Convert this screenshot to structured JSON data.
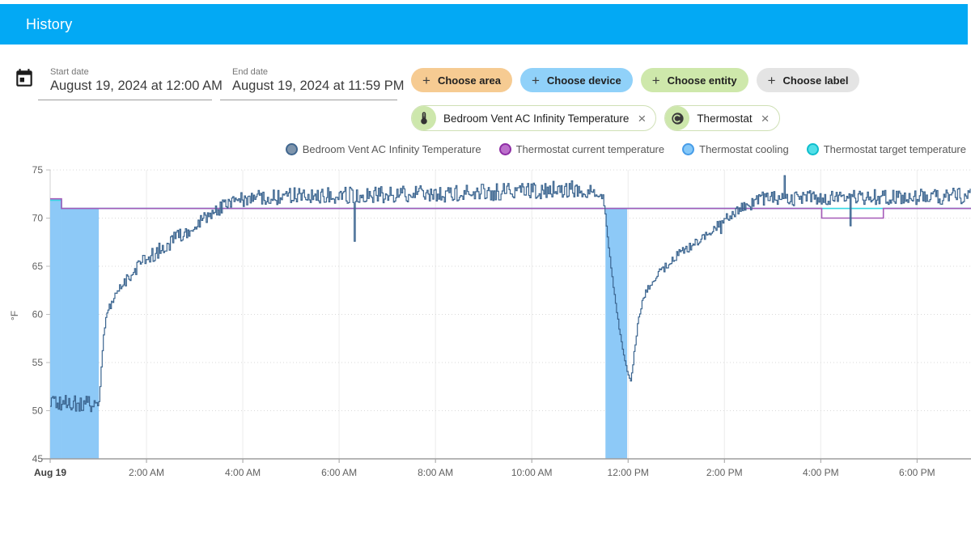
{
  "header": {
    "title": "History"
  },
  "dates": {
    "start_label": "Start date",
    "start_value": "August 19, 2024 at 12:00 AM",
    "end_label": "End date",
    "end_value": "August 19, 2024 at 11:59 PM"
  },
  "filter_chips": [
    {
      "label": "Choose area",
      "bg": "#f6cb92"
    },
    {
      "label": "Choose device",
      "bg": "#90d1f9"
    },
    {
      "label": "Choose entity",
      "bg": "#cee8ab"
    },
    {
      "label": "Choose label",
      "bg": "#e4e4e4"
    }
  ],
  "entity_chips": [
    {
      "label": "Bedroom Vent AC Infinity Temperature",
      "icon": "thermometer-icon",
      "close": "×"
    },
    {
      "label": "Thermostat",
      "icon": "thermostat-icon",
      "close": "×"
    }
  ],
  "chart_data": {
    "type": "line",
    "title": "",
    "xlabel": "",
    "ylabel": "°F",
    "ylim": [
      45,
      75
    ],
    "xlim": [
      0,
      19.12
    ],
    "grid": true,
    "legend_position": "top-right",
    "y_ticks": [
      75,
      70,
      65,
      60,
      55,
      50,
      45
    ],
    "x_ticks": [
      {
        "t": 0,
        "label": "Aug 19",
        "bold": true
      },
      {
        "t": 2,
        "label": "2:00 AM"
      },
      {
        "t": 4,
        "label": "4:00 AM"
      },
      {
        "t": 6,
        "label": "6:00 AM"
      },
      {
        "t": 8,
        "label": "8:00 AM"
      },
      {
        "t": 10,
        "label": "10:00 AM"
      },
      {
        "t": 12,
        "label": "12:00 PM"
      },
      {
        "t": 14,
        "label": "2:00 PM"
      },
      {
        "t": 16,
        "label": "4:00 PM"
      },
      {
        "t": 18,
        "label": "6:00 PM"
      }
    ],
    "legend": [
      {
        "label": "Bedroom Vent AC Infinity Temperature",
        "fill": "#7f95ac",
        "border": "#41678f"
      },
      {
        "label": "Thermostat current temperature",
        "fill": "#bb6fcb",
        "border": "#8e2da5"
      },
      {
        "label": "Thermostat cooling",
        "fill": "#85c8f8",
        "border": "#479ce8"
      },
      {
        "label": "Thermostat target temperature",
        "fill": "#52dfe8",
        "border": "#0fbecd"
      }
    ],
    "cooling_color": "#8dc9f7",
    "cooling_intervals": [
      {
        "from": 0,
        "to": 0.235,
        "top": 72
      },
      {
        "from": 0.235,
        "to": 1.01,
        "top": 71
      },
      {
        "from": 11.53,
        "to": 11.98,
        "top": 71
      }
    ],
    "series": [
      {
        "name": "Thermostat target temperature",
        "type": "step",
        "color": "#35d8e4",
        "width": 1.6,
        "points": [
          [
            0,
            71.85
          ],
          [
            0.235,
            71.85
          ],
          [
            0.235,
            71
          ],
          [
            19.12,
            71
          ]
        ]
      },
      {
        "name": "Thermostat current temperature",
        "type": "step",
        "color": "#a55ab8",
        "width": 1.6,
        "points": [
          [
            0,
            72
          ],
          [
            0.235,
            72
          ],
          [
            0.235,
            71
          ],
          [
            16.02,
            71
          ],
          [
            16.02,
            70
          ],
          [
            17.3,
            70
          ],
          [
            17.3,
            71
          ],
          [
            19.12,
            71
          ]
        ]
      },
      {
        "name": "Bedroom Vent AC Infinity Temperature",
        "type": "noisy-step",
        "color": "#3a648f",
        "width": 1.2,
        "seed": 20240819,
        "step": 0.024,
        "anchors": [
          [
            0,
            50.8,
            0.85
          ],
          [
            1.0,
            50.7,
            0.85
          ],
          [
            1.02,
            51.8,
            0.2
          ],
          [
            1.05,
            54,
            0.2
          ],
          [
            1.08,
            56.4,
            0.2
          ],
          [
            1.12,
            58.6,
            0.2
          ],
          [
            1.18,
            60.2,
            0.3
          ],
          [
            1.3,
            61.6,
            0.5
          ],
          [
            1.5,
            63,
            0.6
          ],
          [
            1.75,
            64.6,
            0.7
          ],
          [
            2,
            65.8,
            0.8
          ],
          [
            2.4,
            67.2,
            0.8
          ],
          [
            2.8,
            68.6,
            0.8
          ],
          [
            3.2,
            70,
            0.7
          ],
          [
            3.6,
            71.3,
            0.7
          ],
          [
            4,
            72,
            0.8
          ],
          [
            5,
            72.3,
            0.85
          ],
          [
            8,
            72.5,
            0.9
          ],
          [
            10.8,
            73,
            0.9
          ],
          [
            11.35,
            72.8,
            0.7
          ],
          [
            11.47,
            72.2,
            0.3
          ],
          [
            11.52,
            70.5,
            0.15
          ],
          [
            11.58,
            67.5,
            0.15
          ],
          [
            11.66,
            64,
            0.15
          ],
          [
            11.75,
            60.5,
            0.15
          ],
          [
            11.84,
            57.5,
            0.15
          ],
          [
            11.93,
            55,
            0.15
          ],
          [
            12,
            53.6,
            0.15
          ],
          [
            12.05,
            53,
            0.15
          ],
          [
            12.1,
            55,
            0.2
          ],
          [
            12.16,
            57.8,
            0.3
          ],
          [
            12.24,
            60.3,
            0.3
          ],
          [
            12.35,
            62.3,
            0.4
          ],
          [
            12.55,
            63.9,
            0.5
          ],
          [
            12.8,
            65.2,
            0.5
          ],
          [
            13.1,
            66.4,
            0.5
          ],
          [
            13.45,
            67.7,
            0.5
          ],
          [
            13.8,
            69,
            0.5
          ],
          [
            14.1,
            70.2,
            0.5
          ],
          [
            14.4,
            71.2,
            0.6
          ],
          [
            14.8,
            72,
            0.75
          ],
          [
            19.12,
            72.3,
            0.85
          ]
        ],
        "spikes": [
          [
            6.3,
            67.6
          ],
          [
            13.93,
            68.4
          ],
          [
            15.25,
            74.4
          ],
          [
            16.6,
            69.2
          ]
        ]
      }
    ]
  }
}
